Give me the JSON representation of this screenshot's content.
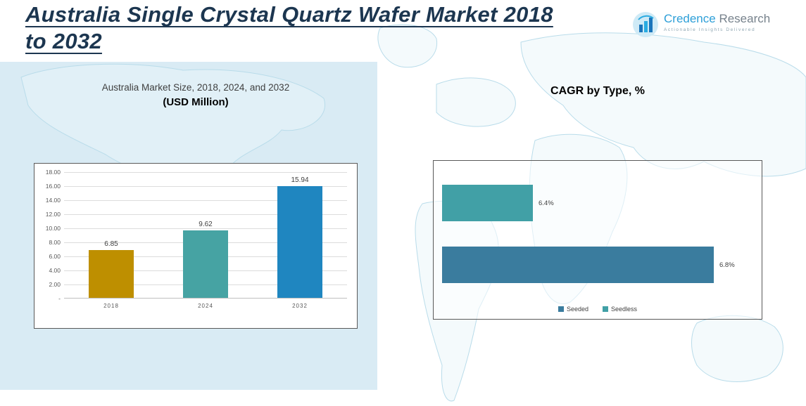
{
  "header": {
    "title_line1": "Australia Single Crystal Quartz Wafer Market 2018",
    "title_line2": "to 2032",
    "logo": {
      "brand_first": "Credence",
      "brand_second": " Research",
      "tagline": "Actionable Insights Delivered",
      "brand_blue": "#2d9fd8"
    }
  },
  "colors": {
    "title_navy": "#1c3650",
    "left_panel_bg": "#d9ebf4"
  },
  "chart_data": [
    {
      "type": "bar",
      "title": "Australia Market Size, 2018, 2024, and 2032",
      "subtitle": "(USD Million)",
      "categories": [
        "2018",
        "2024",
        "2032"
      ],
      "values": [
        6.85,
        9.62,
        15.94
      ],
      "value_labels": [
        "6.85",
        "9.62",
        "15.94"
      ],
      "bar_colors": [
        "#BE8F00",
        "#46A3A3",
        "#1F86C0"
      ],
      "ylim": [
        0,
        18
      ],
      "ytick_step": 2,
      "ytick_labels": [
        "-",
        "2.00",
        "4.00",
        "6.00",
        "8.00",
        "10.00",
        "12.00",
        "14.00",
        "16.00",
        "18.00"
      ],
      "grid": true,
      "legend": null
    },
    {
      "type": "bar-horizontal",
      "title": "CAGR by Type, %",
      "categories": [
        "Seedless",
        "Seeded"
      ],
      "values": [
        6.4,
        6.8
      ],
      "value_labels": [
        "6.4%",
        "6.8%"
      ],
      "bar_colors": [
        "#41A0A6",
        "#3A7C9E"
      ],
      "xlim": [
        6.2,
        6.9
      ],
      "grid": false,
      "legend": [
        {
          "label": "Seeded",
          "color": "#3A7C9E"
        },
        {
          "label": "Seedless",
          "color": "#41A0A6"
        }
      ],
      "legend_position": "bottom"
    }
  ]
}
